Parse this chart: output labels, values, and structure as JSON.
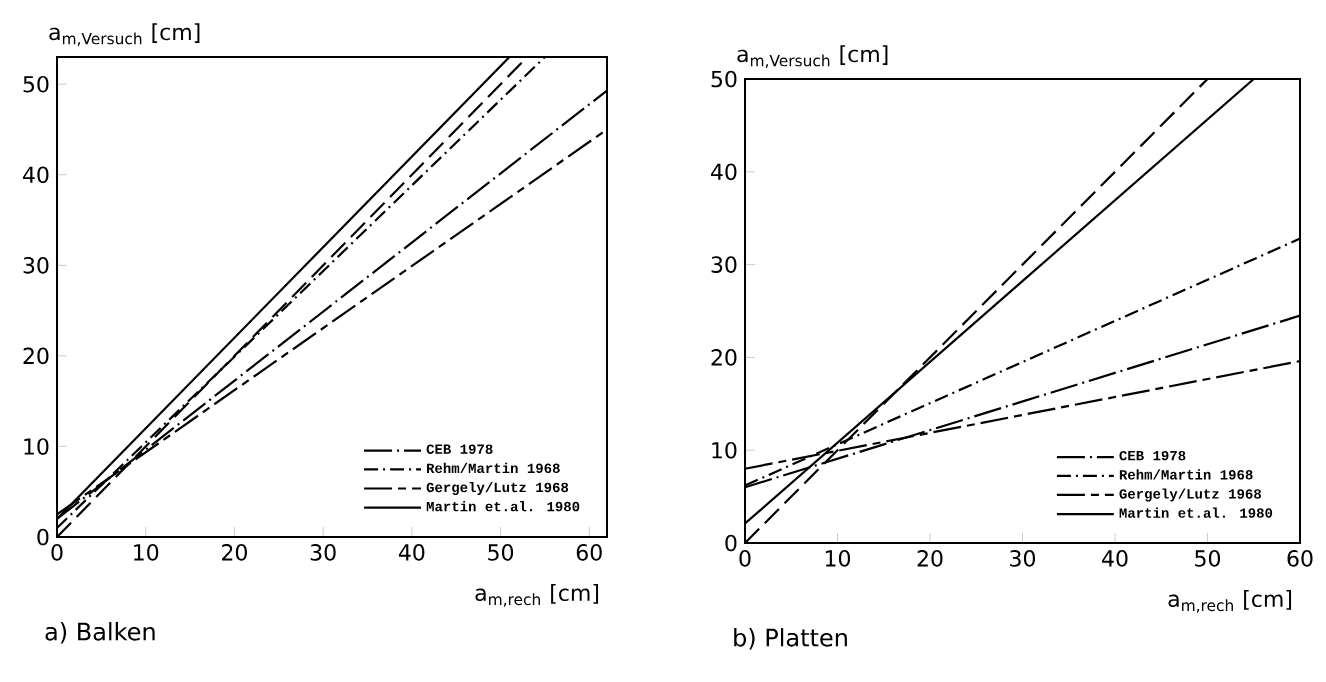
{
  "chart_data": [
    {
      "type": "line",
      "title": "a) Balken",
      "xlabel": "a$_{m,rech}$ [cm]",
      "ylabel": "a$_{m,Versuch}$ [cm]",
      "xlim": [
        0,
        62
      ],
      "ylim": [
        0,
        53
      ],
      "xticks": [
        0,
        10,
        20,
        30,
        40,
        50,
        60
      ],
      "yticks": [
        0,
        10,
        20,
        30,
        40,
        50
      ],
      "legend": "bottom right",
      "series": [
        {
          "name": "CEB 1978",
          "color": "#000000",
          "line_style": "longdashdot",
          "x": [
            0,
            62
          ],
          "values": [
            2,
            49.3
          ]
        },
        {
          "name": "Rehm/Martin 1968",
          "color": "#000000",
          "line_style": "dashdot",
          "x": [
            0,
            55
          ],
          "values": [
            1,
            53
          ]
        },
        {
          "name": "Gergely/Lutz 1968",
          "color": "#000000",
          "line_style": "longshortdash",
          "x": [
            0,
            62
          ],
          "values": [
            2.5,
            45
          ]
        },
        {
          "name": "Martin et.al. 1980",
          "color": "#000000",
          "line_style": "solid",
          "x": [
            0,
            51
          ],
          "values": [
            2,
            53
          ]
        },
        {
          "color": "#000000",
          "line_style": "dashed",
          "x": [
            0,
            53
          ],
          "values": [
            0,
            53
          ]
        }
      ]
    },
    {
      "type": "line",
      "title": "b) Platten",
      "xlabel": "a$_{m,rech}$ [cm]",
      "ylabel": "a$_{m,Versuch}$ [cm]",
      "xlim": [
        0,
        60
      ],
      "ylim": [
        0,
        50
      ],
      "xticks": [
        0,
        10,
        20,
        30,
        40,
        50,
        60
      ],
      "yticks": [
        0,
        10,
        20,
        30,
        40,
        50
      ],
      "legend": "bottom right",
      "series": [
        {
          "name": "CEB 1978",
          "color": "#000000",
          "line_style": "longdashdot",
          "x": [
            0,
            60
          ],
          "values": [
            6,
            24.5
          ]
        },
        {
          "name": "Rehm/Martin 1968",
          "color": "#000000",
          "line_style": "dashdot",
          "x": [
            0,
            60
          ],
          "values": [
            6.2,
            32.8
          ]
        },
        {
          "name": "Gergely/Lutz 1968",
          "color": "#000000",
          "line_style": "longshortdash",
          "x": [
            0,
            60
          ],
          "values": [
            8,
            19.6
          ]
        },
        {
          "name": "Martin et.al. 1980",
          "color": "#000000",
          "line_style": "solid",
          "x": [
            0,
            55
          ],
          "values": [
            2.1,
            50
          ]
        },
        {
          "color": "#000000",
          "line_style": "dashed",
          "x": [
            0,
            50
          ],
          "values": [
            0,
            50
          ]
        }
      ]
    }
  ]
}
